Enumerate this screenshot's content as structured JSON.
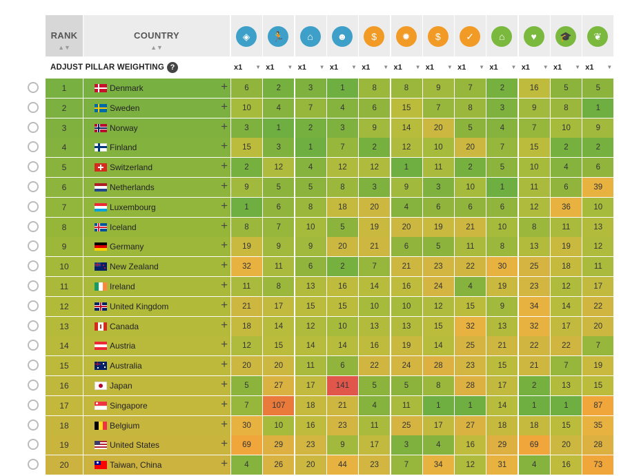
{
  "header": {
    "rank_label": "RANK",
    "country_label": "COUNTRY"
  },
  "adjust": {
    "label": "ADJUST PILLAR WEIGHTING",
    "help": "?"
  },
  "pillars": [
    {
      "icon": "shield-icon",
      "glyph": "◈",
      "color": "#3ea0c8"
    },
    {
      "icon": "runner-icon",
      "glyph": "🏃",
      "color": "#3ea0c8"
    },
    {
      "icon": "government-building-icon",
      "glyph": "⌂",
      "color": "#3ea0c8"
    },
    {
      "icon": "people-group-icon",
      "glyph": "☻",
      "color": "#3ea0c8"
    },
    {
      "icon": "money-plant-icon",
      "glyph": "$",
      "color": "#f29a26"
    },
    {
      "icon": "lightbulb-icon",
      "glyph": "✹",
      "color": "#f29a26"
    },
    {
      "icon": "money-bag-icon",
      "glyph": "$",
      "color": "#f29a26"
    },
    {
      "icon": "coin-check-icon",
      "glyph": "✓",
      "color": "#f29a26"
    },
    {
      "icon": "home-icon",
      "glyph": "⌂",
      "color": "#7ab83e"
    },
    {
      "icon": "heart-pulse-icon",
      "glyph": "♥",
      "color": "#7ab83e"
    },
    {
      "icon": "graduation-cap-icon",
      "glyph": "🎓",
      "color": "#7ab83e"
    },
    {
      "icon": "leaf-icon",
      "glyph": "❦",
      "color": "#7ab83e"
    }
  ],
  "weights": [
    "x1",
    "x1",
    "x1",
    "x1",
    "x1",
    "x1",
    "x1",
    "x1",
    "x1",
    "x1",
    "x1",
    "x1"
  ],
  "rows": [
    {
      "rank": "1",
      "country": "Denmark",
      "flag": "dk",
      "values": [
        "6",
        "2",
        "3",
        "1",
        "8",
        "8",
        "9",
        "7",
        "2",
        "16",
        "5",
        "5"
      ]
    },
    {
      "rank": "2",
      "country": "Sweden",
      "flag": "se",
      "values": [
        "10",
        "4",
        "7",
        "4",
        "6",
        "15",
        "7",
        "8",
        "3",
        "9",
        "8",
        "1"
      ]
    },
    {
      "rank": "3",
      "country": "Norway",
      "flag": "no",
      "values": [
        "3",
        "1",
        "2",
        "3",
        "9",
        "14",
        "20",
        "5",
        "4",
        "7",
        "10",
        "9"
      ]
    },
    {
      "rank": "4",
      "country": "Finland",
      "flag": "fi",
      "values": [
        "15",
        "3",
        "1",
        "7",
        "2",
        "12",
        "10",
        "20",
        "7",
        "15",
        "2",
        "2"
      ]
    },
    {
      "rank": "5",
      "country": "Switzerland",
      "flag": "ch",
      "values": [
        "2",
        "12",
        "4",
        "12",
        "12",
        "1",
        "11",
        "2",
        "5",
        "10",
        "4",
        "6"
      ]
    },
    {
      "rank": "6",
      "country": "Netherlands",
      "flag": "nl",
      "values": [
        "9",
        "5",
        "5",
        "8",
        "3",
        "9",
        "3",
        "10",
        "1",
        "11",
        "6",
        "39"
      ]
    },
    {
      "rank": "7",
      "country": "Luxembourg",
      "flag": "lu",
      "values": [
        "1",
        "6",
        "8",
        "18",
        "20",
        "4",
        "6",
        "6",
        "6",
        "12",
        "36",
        "10"
      ]
    },
    {
      "rank": "8",
      "country": "Iceland",
      "flag": "is",
      "values": [
        "8",
        "7",
        "10",
        "5",
        "19",
        "20",
        "19",
        "21",
        "10",
        "8",
        "11",
        "13"
      ]
    },
    {
      "rank": "9",
      "country": "Germany",
      "flag": "de",
      "values": [
        "19",
        "9",
        "9",
        "20",
        "21",
        "6",
        "5",
        "11",
        "8",
        "13",
        "19",
        "12"
      ]
    },
    {
      "rank": "10",
      "country": "New Zealand",
      "flag": "nz",
      "values": [
        "32",
        "11",
        "6",
        "2",
        "7",
        "21",
        "23",
        "22",
        "30",
        "25",
        "18",
        "11"
      ]
    },
    {
      "rank": "11",
      "country": "Ireland",
      "flag": "ie",
      "values": [
        "11",
        "8",
        "13",
        "16",
        "14",
        "16",
        "24",
        "4",
        "19",
        "23",
        "12",
        "17"
      ]
    },
    {
      "rank": "12",
      "country": "United Kingdom",
      "flag": "gb",
      "values": [
        "21",
        "17",
        "15",
        "15",
        "10",
        "10",
        "12",
        "15",
        "9",
        "34",
        "14",
        "22"
      ]
    },
    {
      "rank": "13",
      "country": "Canada",
      "flag": "ca",
      "values": [
        "18",
        "14",
        "12",
        "10",
        "13",
        "13",
        "15",
        "32",
        "13",
        "32",
        "17",
        "20"
      ]
    },
    {
      "rank": "14",
      "country": "Austria",
      "flag": "at",
      "values": [
        "12",
        "15",
        "14",
        "14",
        "16",
        "19",
        "14",
        "25",
        "21",
        "22",
        "22",
        "7"
      ]
    },
    {
      "rank": "15",
      "country": "Australia",
      "flag": "au",
      "values": [
        "20",
        "20",
        "11",
        "6",
        "22",
        "24",
        "28",
        "23",
        "15",
        "21",
        "7",
        "19"
      ]
    },
    {
      "rank": "16",
      "country": "Japan",
      "flag": "jp",
      "values": [
        "5",
        "27",
        "17",
        "141",
        "5",
        "5",
        "8",
        "28",
        "17",
        "2",
        "13",
        "15"
      ]
    },
    {
      "rank": "17",
      "country": "Singapore",
      "flag": "sg",
      "values": [
        "7",
        "107",
        "18",
        "21",
        "4",
        "11",
        "1",
        "1",
        "14",
        "1",
        "1",
        "87"
      ]
    },
    {
      "rank": "18",
      "country": "Belgium",
      "flag": "be",
      "values": [
        "30",
        "10",
        "16",
        "23",
        "11",
        "25",
        "17",
        "27",
        "18",
        "18",
        "15",
        "35"
      ]
    },
    {
      "rank": "19",
      "country": "United States",
      "flag": "us",
      "values": [
        "69",
        "29",
        "23",
        "9",
        "17",
        "3",
        "4",
        "16",
        "29",
        "69",
        "20",
        "28"
      ]
    },
    {
      "rank": "20",
      "country": "Taiwan, China",
      "flag": "tw",
      "values": [
        "4",
        "26",
        "20",
        "44",
        "23",
        "7",
        "34",
        "12",
        "31",
        "4",
        "16",
        "73"
      ]
    }
  ]
}
